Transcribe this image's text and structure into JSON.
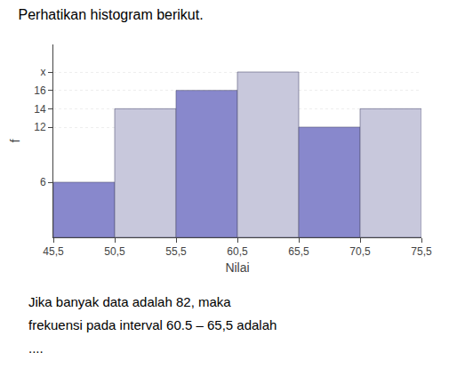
{
  "chart_data": {
    "type": "histogram",
    "title": "Perhatikan histogram berikut.",
    "subtitle": [
      "Jika banyak data adalah 82, maka",
      "frekuensi pada interval 60.5 – 65,5 adalah",
      "...."
    ],
    "bins": [
      45.5,
      50.5,
      55.5,
      60.5,
      65.5,
      70.5,
      75.5
    ],
    "values": [
      6,
      14,
      16,
      18,
      12,
      14
    ],
    "colors": [
      "#8888cc",
      "#c8c8dc",
      "#8888cc",
      "#c8c8dc",
      "#8888cc",
      "#c8c8dc"
    ],
    "xlabel": "Nilai",
    "ylabel": "f",
    "xlim": [
      45.5,
      75.5
    ],
    "xticks": [
      {
        "value": 45.5,
        "label": "45,5"
      },
      {
        "value": 50.5,
        "label": "50,5"
      },
      {
        "value": 55.5,
        "label": "55,5"
      },
      {
        "value": 60.5,
        "label": "60,5"
      },
      {
        "value": 65.5,
        "label": "65,5"
      },
      {
        "value": 70.5,
        "label": "70,5"
      },
      {
        "value": 75.5,
        "label": "75,5"
      }
    ],
    "ylim": [
      0,
      21
    ],
    "yticks": [
      6,
      12,
      14,
      16,
      {
        "value": 18,
        "label": "x"
      }
    ],
    "grid": true
  }
}
